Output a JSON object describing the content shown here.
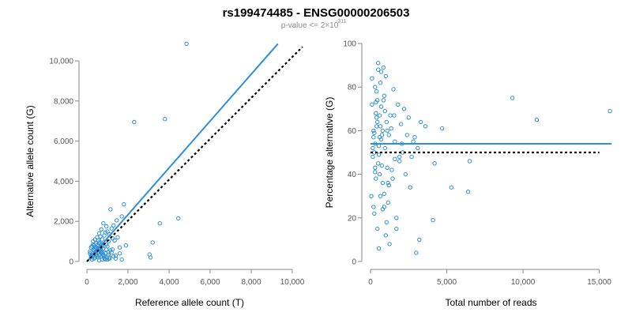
{
  "header": {
    "title": "rs199474485 - ENSG00000206503",
    "pvalue_prefix": "p-value <= 2×10",
    "pvalue_exponent": "-311"
  },
  "colors": {
    "points": "#2e8fd8",
    "fit_line": "#2e8fd8",
    "reference_line": "#000000"
  },
  "chart_data": [
    {
      "type": "scatter",
      "xlabel": "Reference allele count (T)",
      "ylabel": "Alternative allele count (G)",
      "xlim": [
        0,
        10000
      ],
      "ylim": [
        0,
        10000
      ],
      "xticks": [
        0,
        2000,
        4000,
        6000,
        8000,
        10000
      ],
      "xtick_labels": [
        "0",
        "2,000",
        "4,000",
        "6,000",
        "8,000",
        "10,000"
      ],
      "yticks": [
        0,
        2000,
        4000,
        6000,
        8000,
        10000
      ],
      "ytick_labels": [
        "0",
        "2,000",
        "4,000",
        "6,000",
        "8,000",
        "10,000"
      ],
      "fit_line": {
        "x": [
          0,
          9300
        ],
        "y": [
          0,
          10850
        ],
        "style": "solid blue"
      },
      "reference_line": {
        "x": [
          0,
          10500
        ],
        "y": [
          0,
          10700
        ],
        "style": "dotted black"
      },
      "points": {
        "x": [
          4850,
          2300,
          3800,
          1800,
          4450,
          3550,
          3200,
          3050,
          3100,
          1700,
          1450,
          1150,
          1300,
          950,
          1200,
          800,
          1000,
          600,
          700,
          500,
          850,
          400,
          1100,
          650,
          300,
          1250,
          900,
          450,
          550,
          750,
          350,
          600,
          1050,
          200,
          250,
          700,
          500,
          1500,
          1600,
          1350,
          1400,
          1700,
          1900,
          1150,
          950,
          150,
          450,
          1050,
          800,
          650,
          600,
          350,
          400,
          750,
          250,
          900,
          500,
          1100,
          700,
          300,
          550,
          850,
          1000,
          200,
          600,
          750,
          450,
          950,
          1200,
          650,
          400,
          800,
          1300,
          500,
          350,
          700,
          150,
          1600,
          1400,
          900,
          1250,
          1000,
          550,
          300,
          800,
          600,
          250,
          1100,
          400,
          700,
          500,
          850,
          650,
          200,
          450,
          950,
          1050,
          350,
          750,
          600
        ],
        "y": [
          10850,
          6950,
          7100,
          2850,
          2150,
          1900,
          950,
          350,
          200,
          2250,
          2050,
          2600,
          1800,
          1750,
          1650,
          1900,
          1500,
          1400,
          1600,
          1200,
          1300,
          1100,
          1350,
          1250,
          1000,
          1150,
          1450,
          900,
          1050,
          1100,
          800,
          950,
          1000,
          700,
          750,
          850,
          650,
          1200,
          400,
          1050,
          300,
          100,
          800,
          550,
          600,
          500,
          700,
          350,
          650,
          500,
          300,
          550,
          400,
          450,
          350,
          400,
          250,
          200,
          250,
          300,
          200,
          150,
          100,
          200,
          600,
          750,
          500,
          850,
          450,
          900,
          650,
          350,
          250,
          800,
          150,
          550,
          400,
          700,
          150,
          100,
          600,
          750,
          450,
          850,
          300,
          650,
          100,
          150,
          200,
          450,
          550,
          250,
          750,
          300,
          350,
          200,
          450,
          600,
          100,
          50
        ]
      }
    },
    {
      "type": "scatter",
      "xlabel": "Total number of reads",
      "ylabel": "Percentage alternative (G)",
      "xlim": [
        0,
        15800
      ],
      "ylim": [
        0,
        100
      ],
      "xticks": [
        0,
        5000,
        10000,
        15000
      ],
      "xtick_labels": [
        "0",
        "5,000",
        "10,000",
        "15,000"
      ],
      "yticks": [
        0,
        20,
        40,
        60,
        80,
        100
      ],
      "ytick_labels": [
        "0",
        "20",
        "40",
        "60",
        "80",
        "100"
      ],
      "fit_line": {
        "x": [
          0,
          15800
        ],
        "y": [
          54,
          54
        ],
        "style": "solid blue"
      },
      "reference_line": {
        "x": [
          0,
          15000
        ],
        "y": [
          50,
          50
        ],
        "style": "dotted black"
      },
      "points": {
        "x": [
          15700,
          10900,
          9300,
          6500,
          6400,
          5300,
          4700,
          4200,
          4100,
          3600,
          3300,
          3200,
          3100,
          3000,
          2900,
          2800,
          2700,
          2600,
          2500,
          2400,
          2300,
          2200,
          2100,
          2000,
          1900,
          1800,
          1700,
          1600,
          1500,
          1400,
          1300,
          1200,
          1100,
          1000,
          950,
          900,
          850,
          800,
          750,
          700,
          650,
          600,
          550,
          500,
          450,
          400,
          350,
          300,
          250,
          200,
          150,
          100,
          50,
          1250,
          1050,
          900,
          750,
          600,
          450,
          300,
          1150,
          850,
          700,
          550,
          400,
          250,
          1000,
          800,
          650,
          500,
          350,
          200,
          1350,
          1100,
          950,
          700,
          550,
          400,
          300,
          150,
          1600,
          1200,
          900,
          650,
          500,
          350,
          250,
          100,
          2050,
          1700,
          1450,
          1050,
          800,
          600,
          450,
          300,
          200,
          1900,
          1550,
          1150
        ],
        "y": [
          69,
          65,
          75,
          46,
          32,
          34,
          61,
          45,
          19,
          62,
          64,
          10,
          52,
          4,
          57,
          55,
          48,
          34,
          66,
          58,
          40,
          70,
          50,
          63,
          46,
          72,
          20,
          55,
          79,
          42,
          67,
          35,
          60,
          85,
          52,
          25,
          74,
          60,
          44,
          87,
          30,
          67,
          53,
          91,
          15,
          62,
          38,
          80,
          22,
          57,
          48,
          84,
          30,
          8,
          18,
          76,
          58,
          40,
          64,
          54,
          27,
          89,
          71,
          49,
          66,
          59,
          12,
          36,
          82,
          45,
          73,
          25,
          61,
          43,
          69,
          56,
          6,
          78,
          41,
          52,
          47,
          58,
          31,
          62,
          88,
          68,
          50,
          72,
          54,
          15,
          38,
          64,
          24,
          57,
          74,
          43,
          60,
          48,
          67,
          36
        ]
      }
    }
  ]
}
